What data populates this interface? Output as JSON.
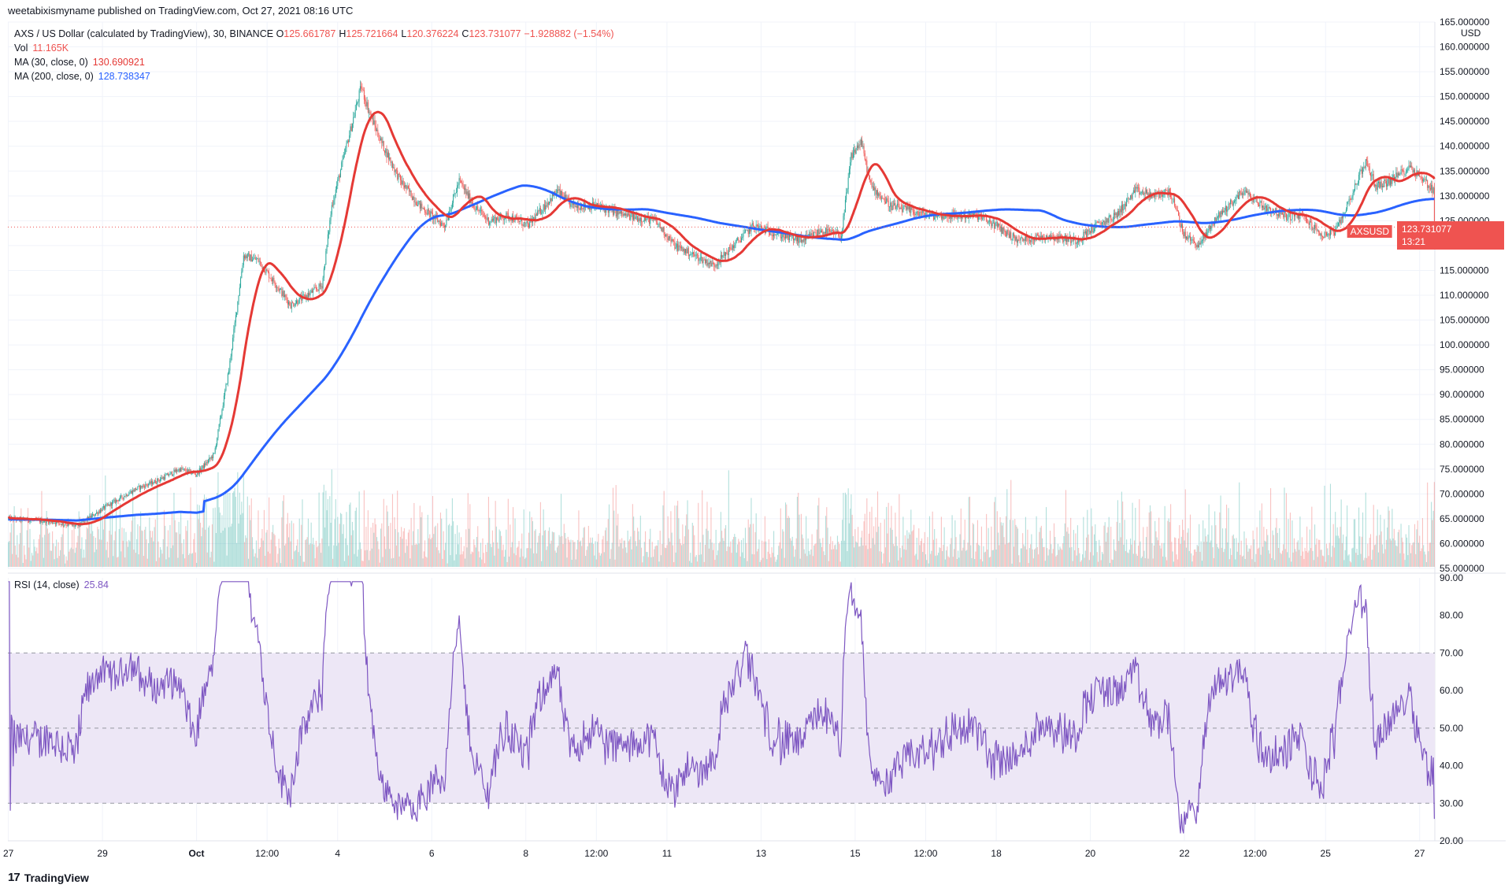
{
  "header": {
    "published": "weetabixismyname published on TradingView.com, Oct 27, 2021 08:16 UTC"
  },
  "legend": {
    "title": "AXS / US Dollar (calculated by TradingView), 30, BINANCE",
    "ohlc": [
      {
        "key": "O",
        "value": "125.661787"
      },
      {
        "key": "H",
        "value": "125.721664"
      },
      {
        "key": "L",
        "value": "120.376224"
      },
      {
        "key": "C",
        "value": "123.731077"
      },
      {
        "key": "",
        "value": "−1.928882 (−1.54%)"
      }
    ],
    "vol_label": "Vol",
    "vol_value": "11.165K",
    "ma30_label": "MA (30, close, 0)",
    "ma30_value": "130.690921",
    "ma200_label": "MA (200, close, 0)",
    "ma200_value": "128.738347",
    "rsi_label": "RSI (14, close)",
    "rsi_value": "25.84"
  },
  "price_axis": {
    "currency": "USD"
  },
  "last_price": {
    "symbol": "AXSUSD",
    "value": "123.731077",
    "countdown": "13:21"
  },
  "brand": {
    "name": "TradingView",
    "mark": "17"
  },
  "colors": {
    "up": "#26a69a",
    "down": "#ef5350",
    "ma30": "#e53935",
    "ma200": "#2962ff",
    "rsi": "#7e57c2",
    "rsi_band": "#ede7f6",
    "grid": "#f0f3fa",
    "text": "#131722"
  },
  "chart_data": [
    {
      "type": "candlestick",
      "title": "AXS / US Dollar (calculated by TradingView), 30, BINANCE",
      "interval": "30",
      "ylim": [
        55,
        165
      ],
      "y_ticks": [
        "55.000000",
        "60.000000",
        "65.000000",
        "70.000000",
        "75.000000",
        "80.000000",
        "85.000000",
        "90.000000",
        "95.000000",
        "100.000000",
        "105.000000",
        "110.000000",
        "115.000000",
        "120.000000",
        "125.000000",
        "130.000000",
        "135.000000",
        "140.000000",
        "145.000000",
        "150.000000",
        "155.000000",
        "160.000000",
        "165.000000"
      ],
      "x_ticks": [
        "27",
        "29",
        "Oct",
        "12:00",
        "4",
        "6",
        "8",
        "12:00",
        "11",
        "13",
        "15",
        "12:00",
        "18",
        "20",
        "22",
        "12:00",
        "25",
        "27"
      ],
      "x_tick_index": [
        0,
        96,
        192,
        264,
        336,
        432,
        528,
        600,
        672,
        768,
        864,
        936,
        1008,
        1104,
        1200,
        1272,
        1344,
        1440
      ],
      "close_path": [
        [
          0,
          65.0
        ],
        [
          40,
          64.5
        ],
        [
          70,
          63.5
        ],
        [
          96,
          67
        ],
        [
          130,
          71
        ],
        [
          150,
          72.5
        ],
        [
          175,
          75
        ],
        [
          192,
          74
        ],
        [
          210,
          78
        ],
        [
          225,
          95
        ],
        [
          240,
          118
        ],
        [
          255,
          117
        ],
        [
          270,
          113
        ],
        [
          288,
          108
        ],
        [
          305,
          110
        ],
        [
          320,
          112
        ],
        [
          330,
          128
        ],
        [
          345,
          140
        ],
        [
          360,
          152
        ],
        [
          368,
          147
        ],
        [
          380,
          141
        ],
        [
          400,
          133
        ],
        [
          420,
          128
        ],
        [
          432,
          126
        ],
        [
          445,
          124
        ],
        [
          460,
          133
        ],
        [
          475,
          128
        ],
        [
          490,
          125
        ],
        [
          510,
          126
        ],
        [
          530,
          124
        ],
        [
          560,
          131
        ],
        [
          575,
          128
        ],
        [
          600,
          128
        ],
        [
          630,
          126
        ],
        [
          660,
          125
        ],
        [
          680,
          120
        ],
        [
          700,
          118
        ],
        [
          720,
          116
        ],
        [
          740,
          120
        ],
        [
          760,
          124
        ],
        [
          790,
          122
        ],
        [
          810,
          121
        ],
        [
          830,
          123
        ],
        [
          850,
          122
        ],
        [
          860,
          138
        ],
        [
          870,
          141
        ],
        [
          880,
          132
        ],
        [
          900,
          128
        ],
        [
          920,
          127
        ],
        [
          940,
          126
        ],
        [
          960,
          126
        ],
        [
          990,
          126
        ],
        [
          1008,
          124
        ],
        [
          1030,
          121
        ],
        [
          1060,
          122
        ],
        [
          1090,
          121
        ],
        [
          1110,
          124
        ],
        [
          1130,
          126
        ],
        [
          1150,
          131
        ],
        [
          1170,
          130
        ],
        [
          1185,
          131
        ],
        [
          1200,
          122
        ],
        [
          1215,
          120
        ],
        [
          1230,
          125
        ],
        [
          1245,
          128
        ],
        [
          1260,
          131
        ],
        [
          1280,
          128
        ],
        [
          1300,
          126
        ],
        [
          1320,
          126
        ],
        [
          1340,
          122
        ],
        [
          1355,
          123
        ],
        [
          1370,
          130
        ],
        [
          1385,
          137
        ],
        [
          1395,
          132
        ],
        [
          1410,
          133
        ],
        [
          1430,
          136
        ],
        [
          1445,
          133
        ],
        [
          1460,
          130
        ],
        [
          1470,
          125
        ],
        [
          1475,
          123.73
        ]
      ],
      "volume_scale": "11.165K",
      "series": [
        {
          "name": "MA (30, close, 0)",
          "last": 130.690921
        },
        {
          "name": "MA (200, close, 0)",
          "last": 128.738347
        }
      ],
      "last_close": 123.731077
    },
    {
      "type": "line",
      "title": "RSI (14, close)",
      "ylim": [
        20,
        90
      ],
      "y_ticks": [
        "20.00",
        "30.00",
        "40.00",
        "50.00",
        "60.00",
        "70.00",
        "80.00",
        "90.00"
      ],
      "band": [
        30,
        70
      ],
      "reference_lines": [
        30,
        50,
        70
      ],
      "last": 25.84
    }
  ]
}
